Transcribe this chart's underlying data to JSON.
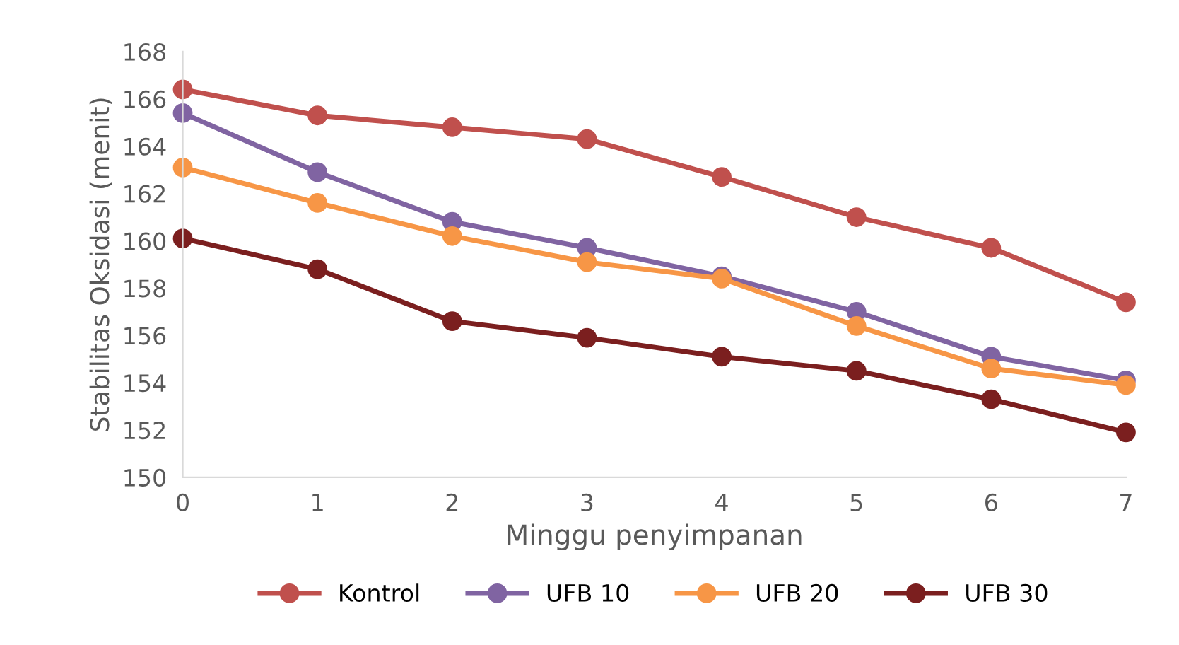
{
  "chart_data": {
    "type": "line",
    "xlabel": "Minggu penyimpanan",
    "ylabel": "Stabilitas Oksidasi (menit)",
    "x": [
      0,
      1,
      2,
      3,
      4,
      5,
      6,
      7
    ],
    "xlim": [
      0,
      7
    ],
    "xticks": [
      0,
      1,
      2,
      3,
      4,
      5,
      6,
      7
    ],
    "ylim": [
      150,
      168
    ],
    "yticks": [
      150,
      152,
      154,
      156,
      158,
      160,
      162,
      164,
      166,
      168
    ],
    "grid": false,
    "legend": "bottom",
    "marker": "circle",
    "line_style": "solid",
    "series": [
      {
        "name": "Kontrol",
        "color": "#c0504d",
        "values": [
          166.4,
          165.3,
          164.8,
          164.3,
          162.7,
          161.0,
          159.7,
          157.4
        ]
      },
      {
        "name": "UFB 10",
        "color": "#8064a2",
        "values": [
          165.4,
          162.9,
          160.8,
          159.7,
          158.5,
          157.0,
          155.1,
          154.1
        ]
      },
      {
        "name": "UFB 20",
        "color": "#f79646",
        "values": [
          163.1,
          161.6,
          160.2,
          159.1,
          158.4,
          156.4,
          154.6,
          153.9
        ]
      },
      {
        "name": "UFB 30",
        "color": "#7b1f1f",
        "values": [
          160.1,
          158.8,
          156.6,
          155.9,
          155.1,
          154.5,
          153.3,
          151.9
        ]
      }
    ]
  }
}
